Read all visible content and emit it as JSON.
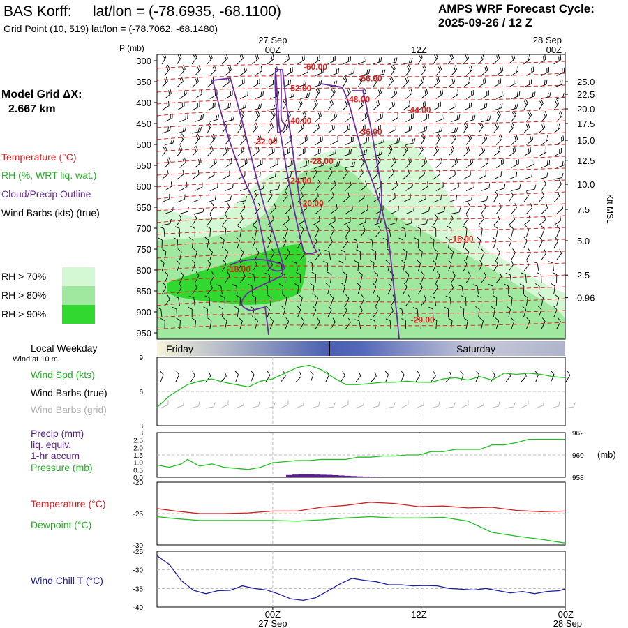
{
  "header": {
    "station": "BAS Korff:",
    "latlon_label": "lat/lon = (-78.6935, -68.1100)",
    "grid_point": "Grid Point (10, 519) lat/lon = (-78.7062, -68.1480)",
    "forecast_title": "AMPS WRF Forecast Cycle:",
    "cycle": "2025-09-26 / 12  Z"
  },
  "left_legend": {
    "model_grid": "Model Grid ΔX:",
    "model_dx": "2.667 km",
    "temperature": "Temperature (°C)",
    "rh": "RH (%, WRT liq. wat.)",
    "cloud": "Cloud/Precip Outline",
    "wind_barbs": "Wind Barbs (kts) (true)",
    "rh_70": "RH > 70%",
    "rh_80": "RH > 80%",
    "rh_90": "RH > 90%",
    "rh_colors": [
      "#d4f7d4",
      "#a0e8a0",
      "#30d830"
    ]
  },
  "colors": {
    "temp": "#e02020",
    "cloud": "#6a2e9e",
    "green": "#22c022",
    "blue": "#2020a0",
    "grey": "#b0b0b0",
    "precip": "#5a1f8a"
  },
  "time_axis": {
    "top_labels": [
      {
        "date": "27 Sep",
        "hour": "00Z",
        "t": 12
      },
      {
        "date": "",
        "hour": "12Z",
        "t": 24
      },
      {
        "date": "28 Sep",
        "hour": "00Z",
        "t": 36
      }
    ],
    "bottom_labels": [
      {
        "date": "27 Sep",
        "hour": "00Z",
        "t": 12
      },
      {
        "date": "",
        "hour": "12Z",
        "t": 24
      },
      {
        "date": "28 Sep",
        "hour": "00Z",
        "t": 36
      }
    ],
    "range": [
      2.5,
      36
    ]
  },
  "weekday": {
    "label": "Local Weekday",
    "day1": "Friday",
    "day2": "Saturday"
  },
  "chart_data": [
    {
      "type": "area",
      "ylabel": "P (mb)",
      "yticks": [
        "300",
        "350",
        "400",
        "450",
        "500",
        "550",
        "600",
        "650",
        "700",
        "750",
        "800",
        "850",
        "900",
        "950"
      ],
      "ylim": [
        965,
        285
      ],
      "right_label": "Kft MSL",
      "right_ticks": [
        {
          "label": "25.0",
          "p": 350
        },
        {
          "label": "22.5",
          "p": 380
        },
        {
          "label": "20.0",
          "p": 415
        },
        {
          "label": "17.5",
          "p": 450
        },
        {
          "label": "15.0",
          "p": 490
        },
        {
          "label": "12.5",
          "p": 538
        },
        {
          "label": "10.0",
          "p": 595
        },
        {
          "label": "7.5",
          "p": 655
        },
        {
          "label": "5.0",
          "p": 730
        },
        {
          "label": "2.5",
          "p": 812
        },
        {
          "label": "0.96",
          "p": 866
        }
      ],
      "temperature_labels": [
        {
          "label": "-60.00",
          "t": 15.5,
          "p": 300
        },
        {
          "label": "-56.00",
          "t": 20,
          "p": 318
        },
        {
          "label": "-52.00",
          "t": 14.2,
          "p": 333
        },
        {
          "label": "-48.00",
          "t": 19,
          "p": 350
        },
        {
          "label": "-44.00",
          "t": 24,
          "p": 366
        },
        {
          "label": "-40.00",
          "t": 14.2,
          "p": 383
        },
        {
          "label": "-36.00",
          "t": 20,
          "p": 400
        },
        {
          "label": "-32.00",
          "t": 11.4,
          "p": 415
        },
        {
          "label": "-28.00",
          "t": 16,
          "p": 445
        },
        {
          "label": "-24.00",
          "t": 14.2,
          "p": 475
        },
        {
          "label": "-20.00",
          "t": 15.2,
          "p": 510
        },
        {
          "label": "-16.00",
          "t": 27.5,
          "p": 565
        },
        {
          "label": "-18.00",
          "t": 9.2,
          "p": 612
        },
        {
          "label": "-20.00",
          "t": 24.3,
          "p": 690
        }
      ]
    },
    {
      "type": "line",
      "title": "Wind at 10 m",
      "ylim": [
        3,
        9
      ],
      "yticks": [
        "9",
        "6",
        "3"
      ],
      "series": [
        {
          "name": "Wind Spd (kts)",
          "x": [
            2.5,
            3.5,
            5,
            6,
            7,
            8,
            9,
            10,
            11,
            12,
            13,
            14,
            15,
            16,
            17,
            18,
            19,
            20,
            21,
            22,
            23,
            24,
            25,
            26,
            27,
            28,
            29,
            30,
            31,
            32,
            33,
            34,
            35,
            36
          ],
          "values": [
            4.6,
            5.6,
            6.6,
            6.9,
            7.1,
            6.8,
            6.6,
            6.4,
            6.9,
            7.1,
            7.6,
            8.1,
            8.3,
            7.9,
            7.2,
            6.6,
            6.6,
            6.7,
            6.8,
            6.8,
            6.9,
            6.8,
            6.8,
            7.1,
            7.2,
            7.0,
            7.3,
            7.0,
            7.6,
            7.5,
            7.6,
            7.5,
            7.3,
            7.2
          ]
        }
      ],
      "labels": {
        "speed": "Wind Spd (kts)",
        "barbs_true": "Wind Barbs (true)",
        "barbs_grid": "Wind Barbs (grid)"
      }
    },
    {
      "type": "line",
      "ylim_left": [
        0,
        3
      ],
      "yticks_left": [
        "3",
        "2.5",
        "2.0",
        "1.5",
        "1.0",
        "0.5",
        "0.0"
      ],
      "ylim_right": [
        958,
        962
      ],
      "yticks_right": [
        "962",
        "960",
        "958"
      ],
      "right_unit": "(mb)",
      "labels": {
        "precip": "Precip (mm)",
        "liq": "liq. equiv.",
        "accum": "1-hr accum",
        "pressure": "Pressure (mb)"
      },
      "series": [
        {
          "name": "Pressure (mb)",
          "x": [
            2.5,
            3.5,
            4.5,
            5,
            6,
            7,
            8,
            9,
            10,
            11,
            12,
            13,
            14,
            15,
            16,
            17,
            18,
            19,
            20,
            21,
            22,
            23,
            24,
            25,
            26,
            27,
            28,
            29,
            30,
            31,
            32,
            33,
            34,
            35,
            36
          ],
          "values": [
            959.1,
            958.9,
            959.2,
            959.6,
            959.0,
            959.2,
            958.9,
            958.8,
            958.7,
            958.9,
            959.3,
            959.4,
            959.5,
            959.5,
            959.6,
            959.6,
            959.6,
            959.8,
            959.8,
            959.9,
            959.9,
            960.0,
            960.0,
            960.3,
            960.3,
            960.5,
            960.5,
            960.5,
            960.9,
            960.9,
            961.1,
            961.4,
            961.4,
            961.4,
            961.4
          ]
        },
        {
          "name": "Precip (mm)",
          "x": [
            13.5,
            14,
            14.5,
            15,
            15.5,
            16,
            16.5,
            17,
            17.5,
            18,
            18.5,
            19,
            19.5,
            20,
            20.5
          ],
          "values": [
            0.15,
            0.18,
            0.2,
            0.2,
            0.18,
            0.17,
            0.16,
            0.14,
            0.12,
            0.1,
            0.08,
            0.06,
            0.05,
            0.03,
            0.02
          ]
        }
      ]
    },
    {
      "type": "line",
      "ylim": [
        -30,
        -20
      ],
      "yticks": [
        "-20",
        "-25",
        "-30"
      ],
      "series": [
        {
          "name": "Temperature (°C)",
          "x": [
            2.5,
            4,
            6,
            8,
            10,
            12,
            14,
            16,
            18,
            20,
            22,
            24,
            26,
            28,
            30,
            32,
            34,
            36
          ],
          "values": [
            -24.2,
            -24.6,
            -25.0,
            -25.0,
            -24.9,
            -24.6,
            -24.6,
            -24.0,
            -23.7,
            -23.2,
            -23.4,
            -23.9,
            -23.8,
            -24.1,
            -24.0,
            -24.5,
            -24.7,
            -24.6
          ]
        },
        {
          "name": "Dewpoint (°C)",
          "x": [
            2.5,
            4,
            6,
            8,
            10,
            12,
            14,
            16,
            18,
            20,
            22,
            24,
            26,
            28,
            30,
            32,
            34,
            36
          ],
          "values": [
            -25.5,
            -25.8,
            -26.1,
            -26.1,
            -26.1,
            -26.1,
            -26.2,
            -26.0,
            -25.7,
            -25.5,
            -25.7,
            -25.7,
            -25.6,
            -26.2,
            -28.0,
            -28.6,
            -29.1,
            -29.7
          ]
        }
      ]
    },
    {
      "type": "line",
      "ylim": [
        -40,
        -25
      ],
      "yticks": [
        "-25",
        "-30",
        "-35",
        "-40"
      ],
      "series": [
        {
          "name": "Wind Chill T (°C)",
          "x": [
            2.5,
            3.5,
            4.5,
            5.5,
            6.5,
            7.5,
            8.5,
            9.5,
            10.5,
            11.5,
            12.5,
            13.5,
            14.5,
            15.5,
            16.5,
            17.5,
            18.5,
            19.5,
            20.5,
            21.5,
            22.5,
            23.5,
            24.5,
            25.5,
            26.5,
            27.5,
            28.5,
            29.5,
            30.5,
            31.5,
            32.5,
            33.5,
            34.5,
            35.5,
            36
          ],
          "values": [
            -26.2,
            -28.5,
            -32.9,
            -35.5,
            -36.4,
            -35.6,
            -35.5,
            -34.3,
            -35.0,
            -35.4,
            -36.5,
            -37.8,
            -38.2,
            -37.5,
            -35.7,
            -33.8,
            -32.3,
            -32.8,
            -33.2,
            -34.0,
            -34.0,
            -34.3,
            -34.2,
            -34.3,
            -35.0,
            -35.2,
            -35.4,
            -35.0,
            -35.6,
            -36.2,
            -35.8,
            -36.4,
            -35.8,
            -35.6,
            -35.1
          ]
        }
      ]
    }
  ]
}
